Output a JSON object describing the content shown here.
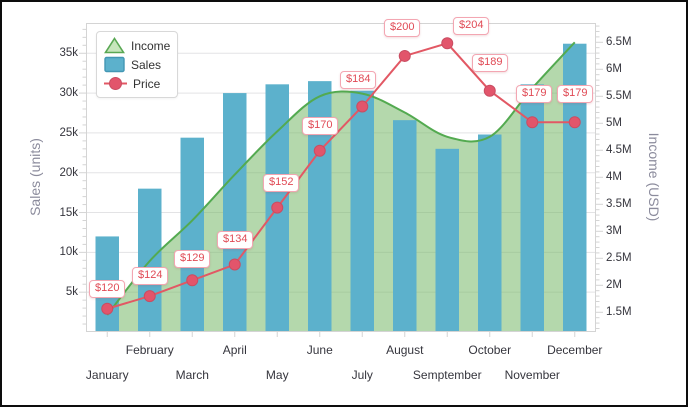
{
  "legend": {
    "items": [
      {
        "label": "Income",
        "marker": "triangle"
      },
      {
        "label": "Sales",
        "marker": "square"
      },
      {
        "label": "Price",
        "marker": "line-point"
      }
    ]
  },
  "chart_data": {
    "type": "combo",
    "categories": [
      "January",
      "February",
      "March",
      "April",
      "May",
      "June",
      "July",
      "August",
      "Semptember",
      "October",
      "November",
      "December"
    ],
    "series": [
      {
        "name": "Income",
        "type": "spline-area",
        "axis": "right",
        "unit": "USD",
        "values": [
          1450000,
          2450000,
          3200000,
          4050000,
          4850000,
          5500000,
          5550000,
          5200000,
          4750000,
          4750000,
          5650000,
          6500000
        ]
      },
      {
        "name": "Sales",
        "type": "bar",
        "axis": "left",
        "unit": "units",
        "values": [
          12000,
          18000,
          24400,
          30000,
          31100,
          31500,
          30300,
          26600,
          23000,
          24800,
          31100,
          36200
        ]
      },
      {
        "name": "Price",
        "type": "line",
        "axis": "hidden",
        "unit": "USD",
        "values": [
          120,
          124,
          129,
          134,
          152,
          170,
          184,
          200,
          204,
          189,
          179,
          179
        ],
        "point_labels": [
          "$120",
          "$124",
          "$129",
          "$134",
          "$152",
          "$170",
          "$184",
          "$200",
          "$204",
          "$189",
          "$179",
          "$179"
        ]
      }
    ],
    "left_axis": {
      "title": "Sales (units)",
      "tick_labels": [
        "5k",
        "10k",
        "15k",
        "20k",
        "25k",
        "30k",
        "35k"
      ],
      "tick_values": [
        5000,
        10000,
        15000,
        20000,
        25000,
        30000,
        35000
      ],
      "range": [
        0,
        38800
      ],
      "minor_step": 1000
    },
    "right_axis": {
      "title": "Income (USD)",
      "tick_labels": [
        "1.5M",
        "2M",
        "2.5M",
        "3M",
        "3.5M",
        "4M",
        "4.5M",
        "5M",
        "5.5M",
        "6M",
        "6.5M"
      ],
      "tick_values": [
        1500000,
        2000000,
        2500000,
        3000000,
        3500000,
        4000000,
        4500000,
        5000000,
        5500000,
        6000000,
        6500000
      ],
      "range": [
        1135000,
        6857000
      ],
      "minor_step": 100000
    },
    "x_axis": {
      "staggered_labels": true
    },
    "grid": "horizontal",
    "legend_position": "top-left-inside"
  },
  "colors": {
    "bar": "#5cb1cc",
    "area_fill_rgba": "rgba(118,184,104,0.55)",
    "area_border": "#53aa50",
    "line": "#e25864",
    "point": "#e2556b",
    "point_border": "#c94d62",
    "price_label_text": "#e04a55",
    "price_label_border": "#f3a6b2",
    "grid_line": "#e3e3e5",
    "axis_line": "#d4d4d4",
    "tick_text": "#35353d",
    "axis_title_text": "#8b8b9c",
    "legend_triangle_fill": "#c7e6bc",
    "legend_triangle_border": "#5aa854",
    "legend_square_border": "#4397b4",
    "frame": "#0d0d0d",
    "background": "#ffffff"
  }
}
